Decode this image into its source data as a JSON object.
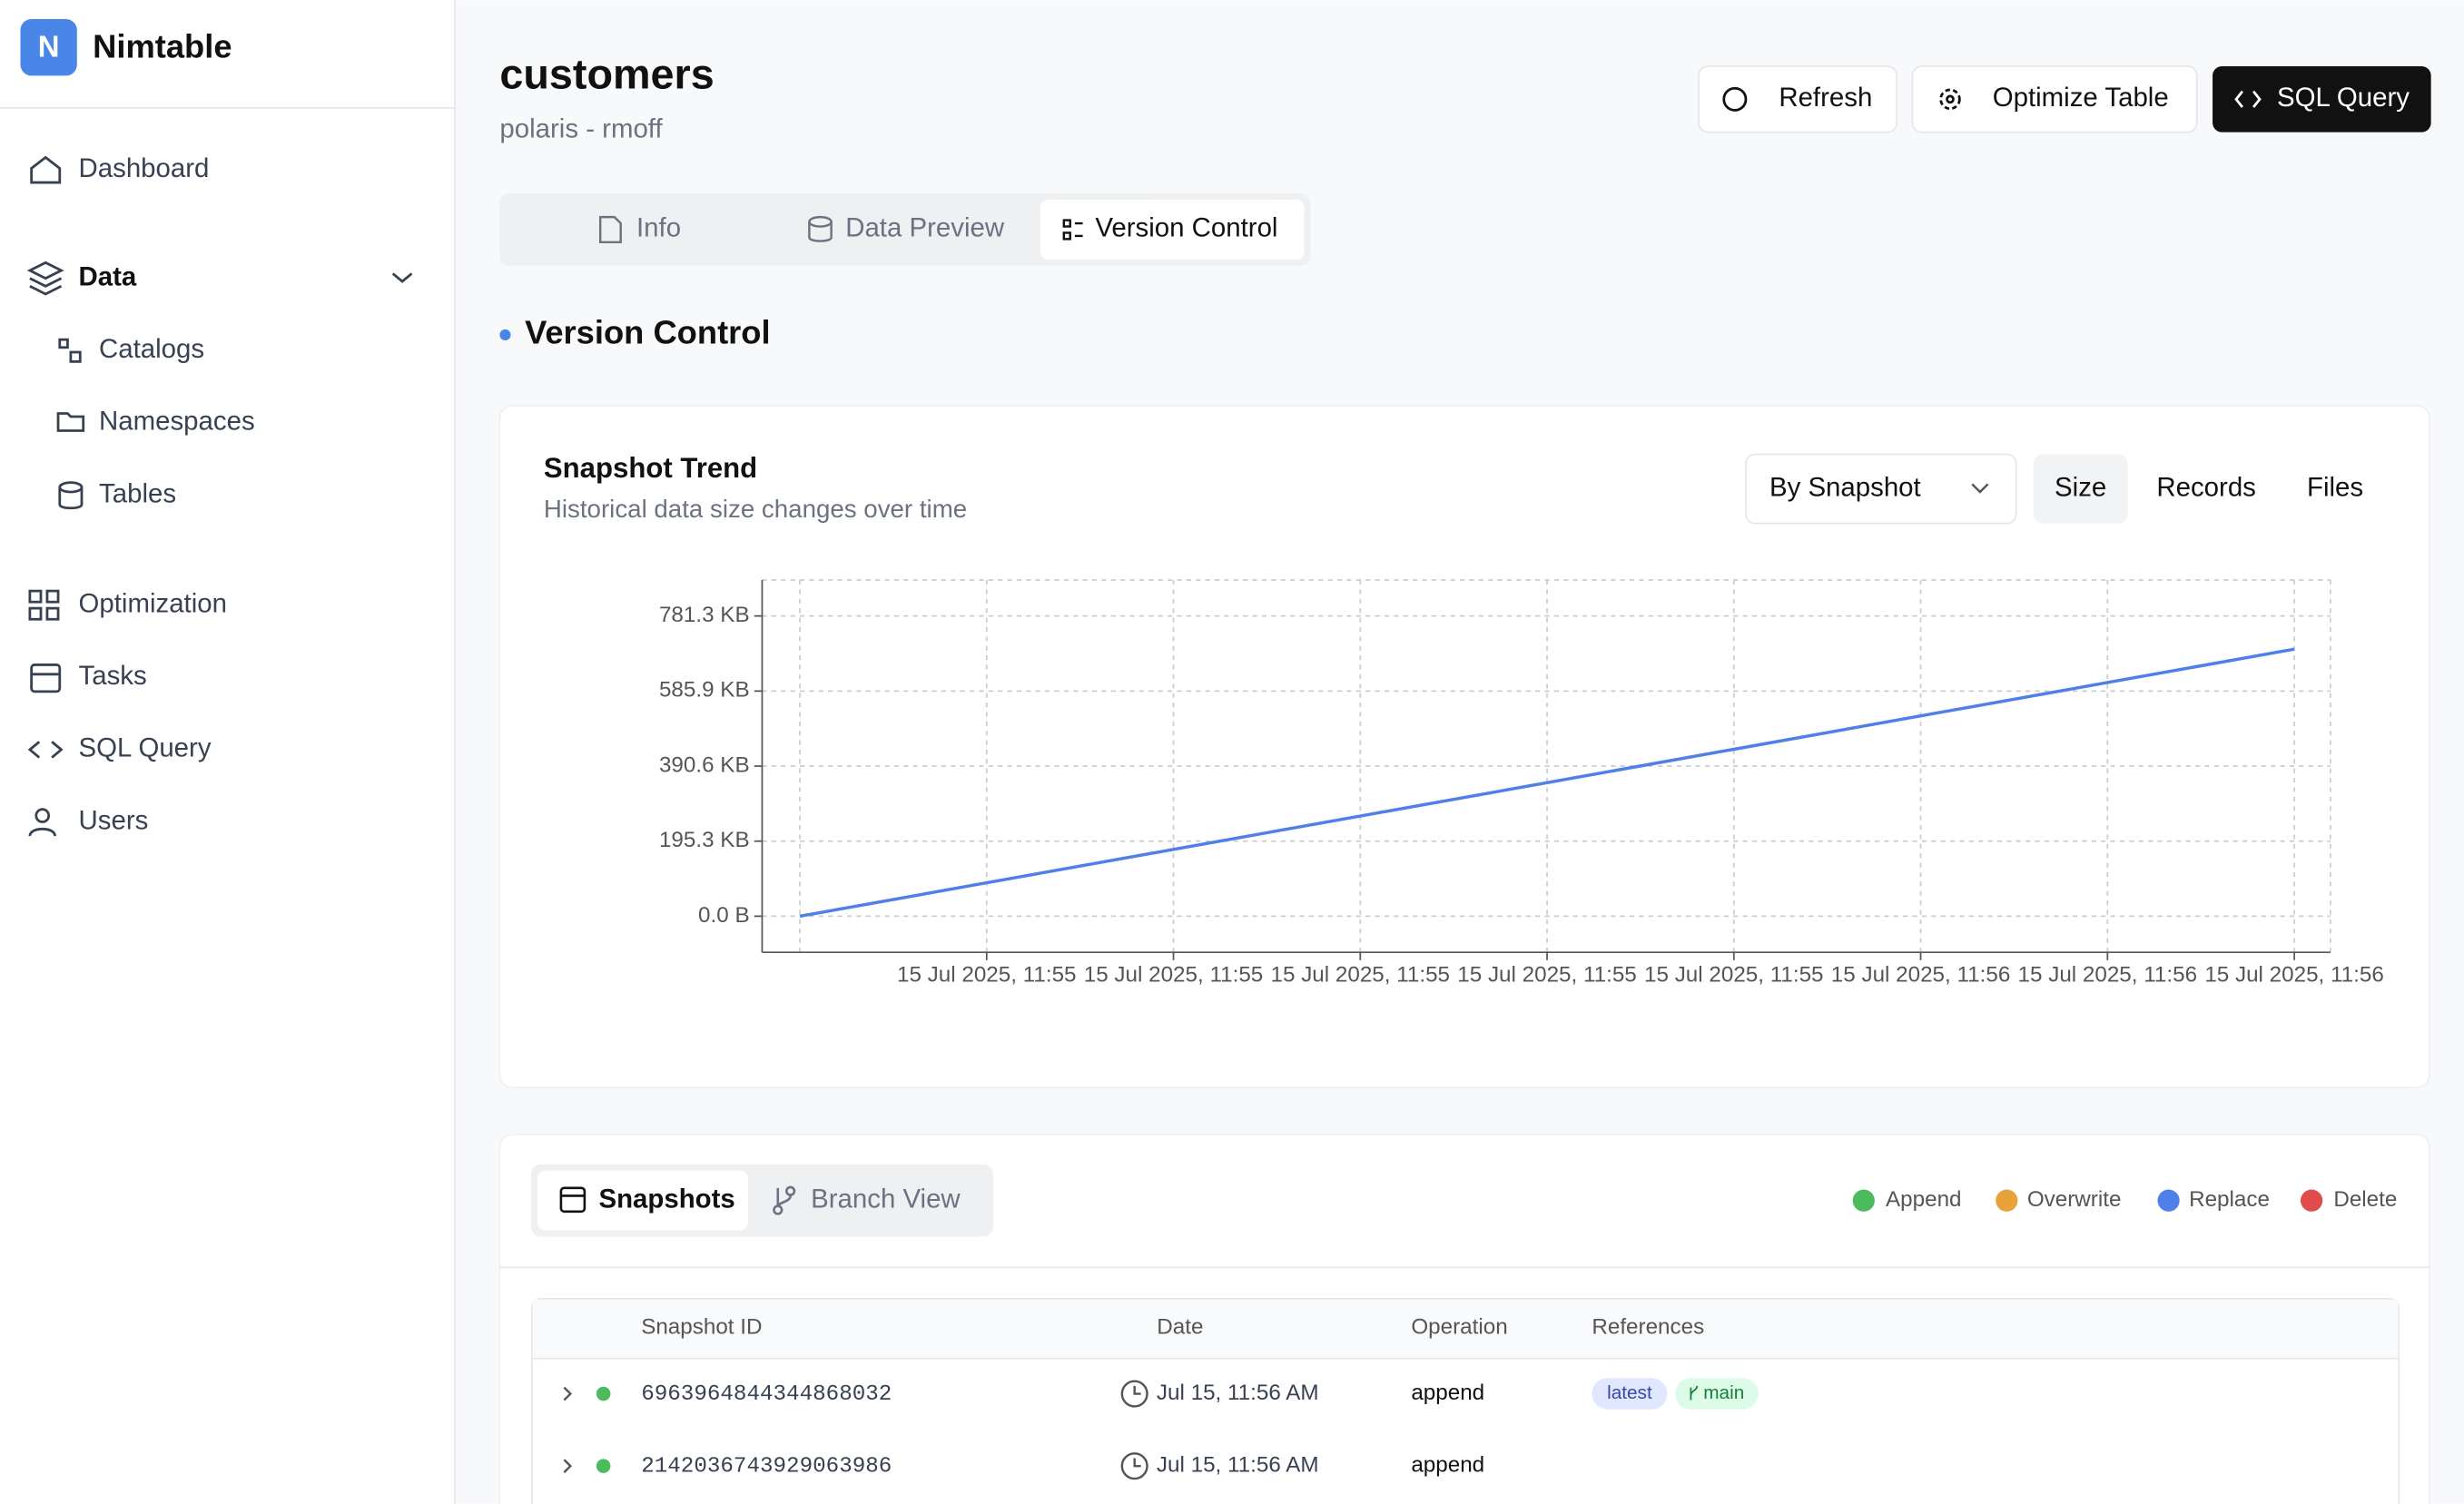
{
  "sidebar": {
    "logo": "N",
    "brand": "Nimtable",
    "nav": [
      "Dashboard",
      "Data",
      "Catalogs",
      "Namespaces",
      "Tables",
      "Optimization",
      "Tasks",
      "SQL Query",
      "Users"
    ]
  },
  "header": {
    "title": "customers",
    "subtitle": "polaris - rmoff",
    "buttons": [
      "Refresh",
      "Optimize Table",
      "SQL Query"
    ]
  },
  "tabs": [
    "Info",
    "Data Preview",
    "Version Control"
  ],
  "section_title": "Version Control",
  "controls": {
    "select": "By Snapshot",
    "metrics": [
      "Size",
      "Records",
      "Files"
    ]
  },
  "chart_data": {
    "type": "line",
    "title": "Snapshot Trend",
    "subtitle": "Historical data size changes over time",
    "categories": [
      null,
      "15 Jul 2025, 11:55",
      "15 Jul 2025, 11:55",
      "15 Jul 2025, 11:55",
      "15 Jul 2025, 11:55",
      "15 Jul 2025, 11:55",
      "15 Jul 2025, 11:56",
      "15 Jul 2025, 11:56",
      "15 Jul 2025, 11:56"
    ],
    "values": [
      0,
      86.9,
      173.8,
      260.6,
      347.5,
      434.4,
      521.3,
      608.1,
      695.0
    ],
    "color": "#4f7fe8",
    "ylim": [
      -94,
      875
    ],
    "yticks": [
      {
        "value": 0,
        "label": "0.0 B"
      },
      {
        "value": 195.3,
        "label": "195.3 KB"
      },
      {
        "value": 390.6,
        "label": "390.6 KB"
      },
      {
        "value": 585.9,
        "label": "585.9 KB"
      },
      {
        "value": 781.3,
        "label": "781.3 KB"
      }
    ],
    "grid": true
  },
  "snapshots": {
    "tabs": [
      "Snapshots",
      "Branch View"
    ],
    "legend": [
      "Append",
      "Overwrite",
      "Replace",
      "Delete"
    ],
    "table": {
      "columns": [
        "Snapshot ID",
        "Date",
        "Operation",
        "References"
      ],
      "rows": [
        {
          "id": "6963964844344868032",
          "date": "Jul 15, 11:56 AM",
          "operation": "append",
          "refs": [
            "latest",
            "main"
          ]
        },
        {
          "id": "2142036743929063986",
          "date": "Jul 15, 11:56 AM",
          "operation": "append"
        }
      ]
    }
  }
}
